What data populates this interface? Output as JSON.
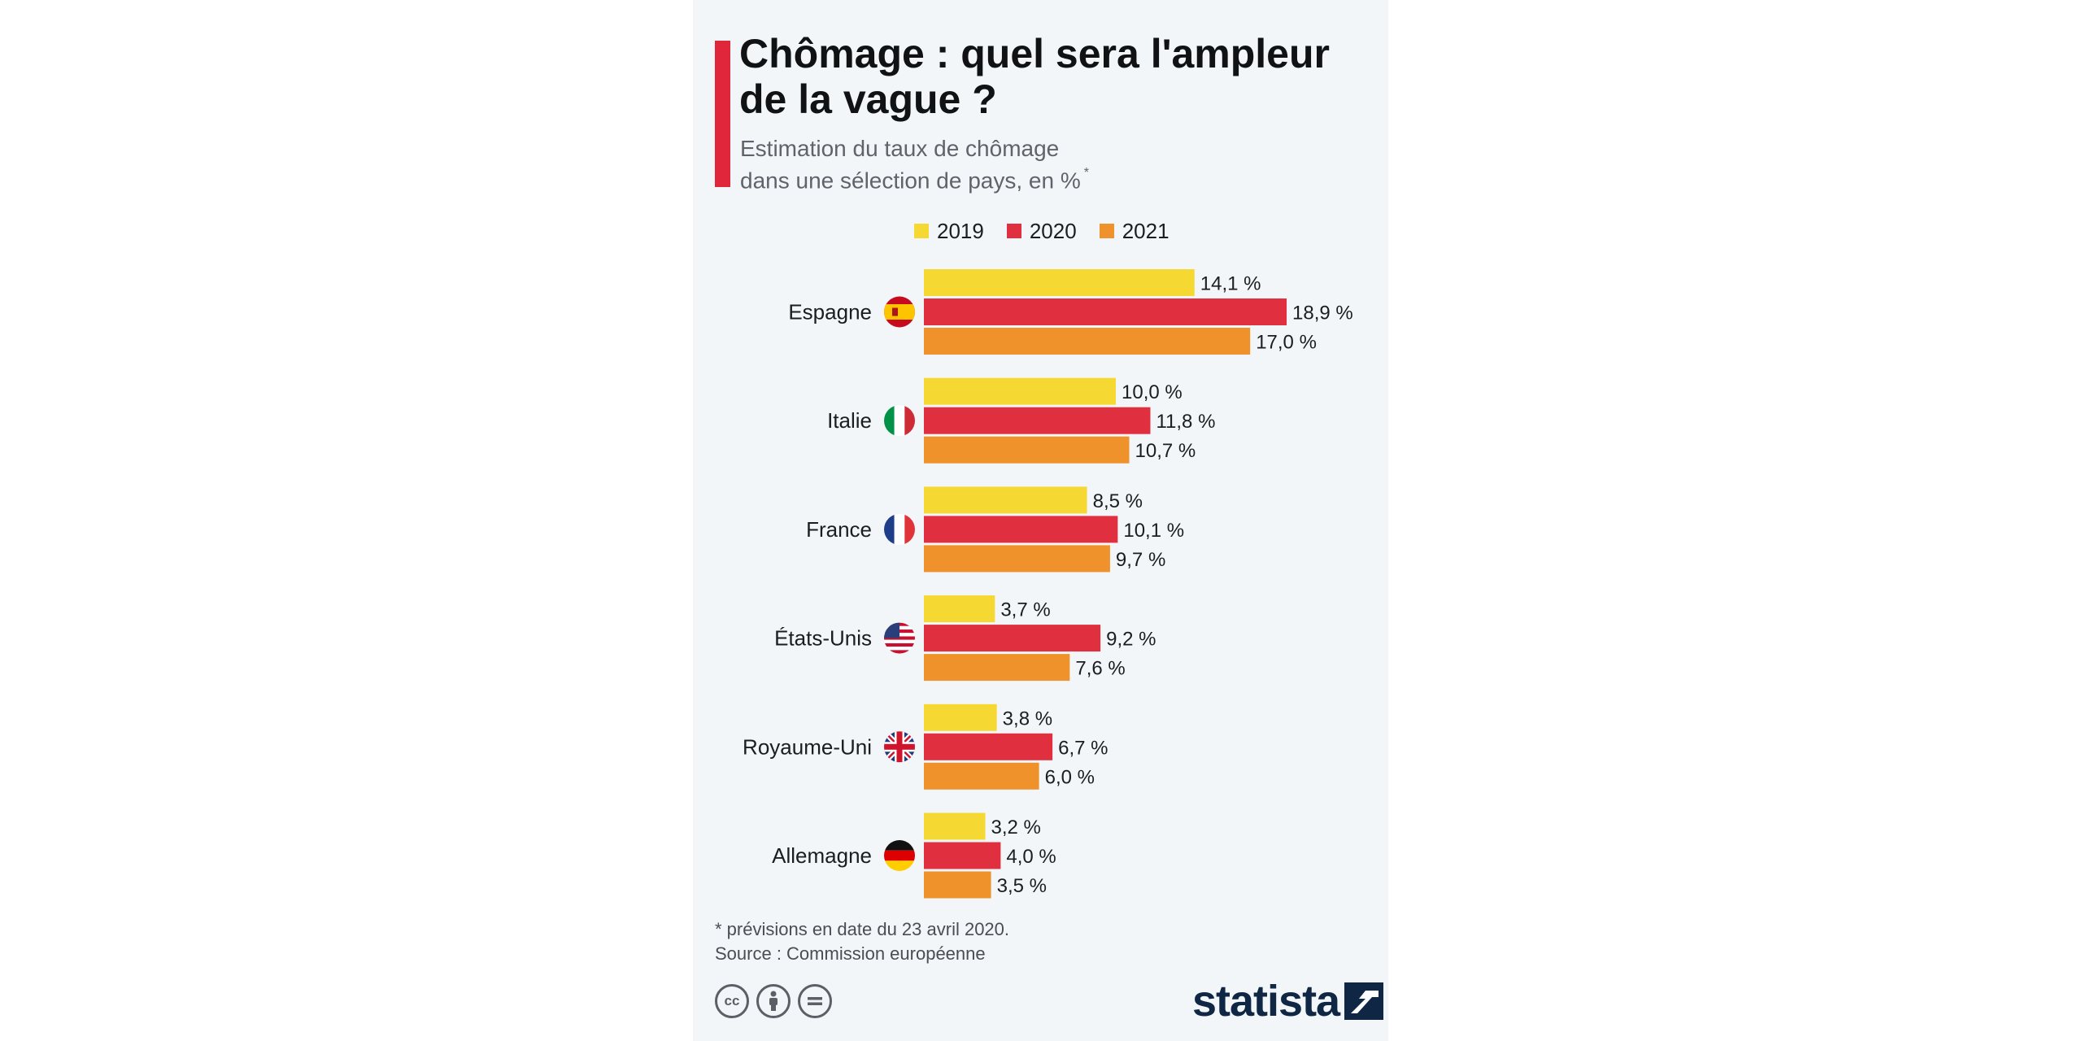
{
  "title": "Chômage : quel sera l'ampleur de la vague ?",
  "subtitle": {
    "line1": "Estimation du taux de chômage",
    "line2": "dans une sélection de pays, en %",
    "marker": "*"
  },
  "footnote": "* prévisions en date du 23 avril 2020.",
  "source": "Source : Commission européenne",
  "brand": "statista",
  "license_icons": [
    "cc-icon",
    "attribution-icon",
    "no-derivatives-icon"
  ],
  "chart_data": {
    "type": "bar",
    "orientation": "horizontal",
    "categories": [
      "Espagne",
      "Italie",
      "France",
      "États-Unis",
      "Royaume-Uni",
      "Allemagne"
    ],
    "category_icons": [
      "spain-flag-icon",
      "italy-flag-icon",
      "france-flag-icon",
      "usa-flag-icon",
      "uk-flag-icon",
      "germany-flag-icon"
    ],
    "series": [
      {
        "name": "2019",
        "color": "#f5d932",
        "values": [
          14.1,
          10.0,
          8.5,
          3.7,
          3.8,
          3.2
        ],
        "labels": [
          "14,1 %",
          "10,0 %",
          "8,5 %",
          "3,7 %",
          "3,8 %",
          "3,2 %"
        ]
      },
      {
        "name": "2020",
        "color": "#e0303f",
        "values": [
          18.9,
          11.8,
          10.1,
          9.2,
          6.7,
          4.0
        ],
        "labels": [
          "18,9 %",
          "11,8 %",
          "10,1 %",
          "9,2 %",
          "6,7 %",
          "4,0 %"
        ]
      },
      {
        "name": "2021",
        "color": "#f0922c",
        "values": [
          17.0,
          10.7,
          9.7,
          7.6,
          6.0,
          3.5
        ],
        "labels": [
          "17,0 %",
          "10,7 %",
          "9,7 %",
          "7,6 %",
          "6,0 %",
          "3,5 %"
        ]
      }
    ],
    "xlim": [
      0,
      20
    ],
    "grid": false,
    "legend_position": "top"
  }
}
